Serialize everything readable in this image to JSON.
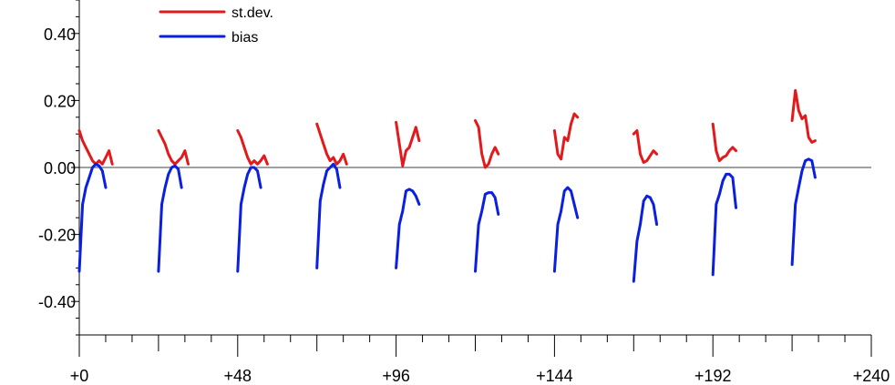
{
  "chart_data": {
    "type": "line",
    "title": "",
    "xlabel": "",
    "ylabel": "",
    "xlim": [
      0,
      240
    ],
    "ylim": [
      -0.5,
      0.5
    ],
    "xticks": [
      0,
      48,
      96,
      144,
      192,
      240
    ],
    "xtick_labels": [
      "+0",
      "+48",
      "+96",
      "+144",
      "+192",
      "+240"
    ],
    "yticks": [
      -0.4,
      -0.2,
      0.0,
      0.2,
      0.4
    ],
    "ytick_labels": [
      "-0.40",
      "-0.20",
      "0.00",
      "0.20",
      "0.40"
    ],
    "zero_line": 0,
    "grid": false,
    "legend_position": "top-left",
    "series": [
      {
        "name": "st.dev.",
        "color": "#e31a1c",
        "segments": [
          [
            [
              0,
              0.11
            ],
            [
              1,
              0.08
            ],
            [
              2,
              0.06
            ],
            [
              3,
              0.04
            ],
            [
              4,
              0.02
            ],
            [
              5,
              0.01
            ],
            [
              6,
              0.02
            ],
            [
              7,
              0.01
            ],
            [
              8,
              0.03
            ],
            [
              9,
              0.05
            ],
            [
              10,
              0.01
            ]
          ],
          [
            [
              24,
              0.11
            ],
            [
              25,
              0.09
            ],
            [
              26,
              0.07
            ],
            [
              27,
              0.04
            ],
            [
              28,
              0.02
            ],
            [
              29,
              0.01
            ],
            [
              30,
              0.02
            ],
            [
              31,
              0.03
            ],
            [
              32,
              0.05
            ],
            [
              33,
              0.01
            ]
          ],
          [
            [
              48,
              0.11
            ],
            [
              49,
              0.09
            ],
            [
              50,
              0.06
            ],
            [
              51,
              0.03
            ],
            [
              52,
              0.01
            ],
            [
              53,
              0.02
            ],
            [
              54,
              0.01
            ],
            [
              55,
              0.02
            ],
            [
              56,
              0.035
            ],
            [
              57,
              0.01
            ]
          ],
          [
            [
              72,
              0.13
            ],
            [
              73,
              0.1
            ],
            [
              74,
              0.07
            ],
            [
              75,
              0.04
            ],
            [
              76,
              0.02
            ],
            [
              77,
              0.03
            ],
            [
              78,
              0.01
            ],
            [
              79,
              0.02
            ],
            [
              80,
              0.04
            ],
            [
              81,
              0.01
            ]
          ],
          [
            [
              96,
              0.135
            ],
            [
              97,
              0.07
            ],
            [
              98,
              0.005
            ],
            [
              99,
              0.05
            ],
            [
              100,
              0.06
            ],
            [
              101,
              0.09
            ],
            [
              102,
              0.12
            ],
            [
              103,
              0.08
            ]
          ],
          [
            [
              120,
              0.14
            ],
            [
              121,
              0.12
            ],
            [
              122,
              0.04
            ],
            [
              123,
              0.0
            ],
            [
              124,
              0.01
            ],
            [
              125,
              0.04
            ],
            [
              126,
              0.06
            ],
            [
              127,
              0.04
            ]
          ],
          [
            [
              144,
              0.11
            ],
            [
              145,
              0.04
            ],
            [
              146,
              0.025
            ],
            [
              147,
              0.09
            ],
            [
              148,
              0.08
            ],
            [
              149,
              0.13
            ],
            [
              150,
              0.16
            ],
            [
              151,
              0.15
            ]
          ],
          [
            [
              168,
              0.1
            ],
            [
              169,
              0.11
            ],
            [
              170,
              0.04
            ],
            [
              171,
              0.015
            ],
            [
              172,
              0.02
            ],
            [
              173,
              0.035
            ],
            [
              174,
              0.05
            ],
            [
              175,
              0.04
            ]
          ],
          [
            [
              192,
              0.13
            ],
            [
              193,
              0.05
            ],
            [
              194,
              0.02
            ],
            [
              195,
              0.03
            ],
            [
              196,
              0.035
            ],
            [
              197,
              0.05
            ],
            [
              198,
              0.06
            ],
            [
              199,
              0.05
            ]
          ],
          [
            [
              216,
              0.14
            ],
            [
              217,
              0.23
            ],
            [
              218,
              0.17
            ],
            [
              219,
              0.145
            ],
            [
              220,
              0.155
            ],
            [
              221,
              0.09
            ],
            [
              222,
              0.075
            ],
            [
              223,
              0.08
            ]
          ]
        ]
      },
      {
        "name": "bias",
        "color": "#0a1fe0",
        "segments": [
          [
            [
              0,
              -0.31
            ],
            [
              1,
              -0.11
            ],
            [
              2,
              -0.06
            ],
            [
              3,
              -0.03
            ],
            [
              4,
              0.0
            ],
            [
              5,
              0.01
            ],
            [
              6,
              0.005
            ],
            [
              7,
              -0.01
            ],
            [
              8,
              -0.06
            ]
          ],
          [
            [
              24,
              -0.31
            ],
            [
              25,
              -0.11
            ],
            [
              26,
              -0.06
            ],
            [
              27,
              -0.02
            ],
            [
              28,
              0.0
            ],
            [
              29,
              0.005
            ],
            [
              30,
              -0.005
            ],
            [
              31,
              -0.06
            ]
          ],
          [
            [
              48,
              -0.31
            ],
            [
              49,
              -0.11
            ],
            [
              50,
              -0.06
            ],
            [
              51,
              -0.02
            ],
            [
              52,
              0.0
            ],
            [
              53,
              0.0
            ],
            [
              54,
              -0.01
            ],
            [
              55,
              -0.06
            ]
          ],
          [
            [
              72,
              -0.3
            ],
            [
              73,
              -0.1
            ],
            [
              74,
              -0.05
            ],
            [
              75,
              -0.01
            ],
            [
              76,
              0.0
            ],
            [
              77,
              0.01
            ],
            [
              78,
              -0.005
            ],
            [
              79,
              -0.06
            ]
          ],
          [
            [
              96,
              -0.3
            ],
            [
              97,
              -0.17
            ],
            [
              98,
              -0.13
            ],
            [
              99,
              -0.07
            ],
            [
              100,
              -0.065
            ],
            [
              101,
              -0.07
            ],
            [
              102,
              -0.085
            ],
            [
              103,
              -0.11
            ]
          ],
          [
            [
              120,
              -0.31
            ],
            [
              121,
              -0.17
            ],
            [
              122,
              -0.13
            ],
            [
              123,
              -0.08
            ],
            [
              124,
              -0.075
            ],
            [
              125,
              -0.075
            ],
            [
              126,
              -0.09
            ],
            [
              127,
              -0.14
            ]
          ],
          [
            [
              144,
              -0.31
            ],
            [
              145,
              -0.17
            ],
            [
              146,
              -0.13
            ],
            [
              147,
              -0.07
            ],
            [
              148,
              -0.06
            ],
            [
              149,
              -0.07
            ],
            [
              150,
              -0.11
            ],
            [
              151,
              -0.15
            ]
          ],
          [
            [
              168,
              -0.34
            ],
            [
              169,
              -0.22
            ],
            [
              170,
              -0.17
            ],
            [
              171,
              -0.1
            ],
            [
              172,
              -0.085
            ],
            [
              173,
              -0.09
            ],
            [
              174,
              -0.11
            ],
            [
              175,
              -0.17
            ]
          ],
          [
            [
              192,
              -0.32
            ],
            [
              193,
              -0.11
            ],
            [
              194,
              -0.08
            ],
            [
              195,
              -0.04
            ],
            [
              196,
              -0.02
            ],
            [
              197,
              -0.02
            ],
            [
              198,
              -0.03
            ],
            [
              199,
              -0.12
            ]
          ],
          [
            [
              216,
              -0.29
            ],
            [
              217,
              -0.11
            ],
            [
              218,
              -0.06
            ],
            [
              219,
              -0.01
            ],
            [
              220,
              0.02
            ],
            [
              221,
              0.025
            ],
            [
              222,
              0.02
            ],
            [
              223,
              -0.03
            ]
          ]
        ]
      }
    ]
  }
}
